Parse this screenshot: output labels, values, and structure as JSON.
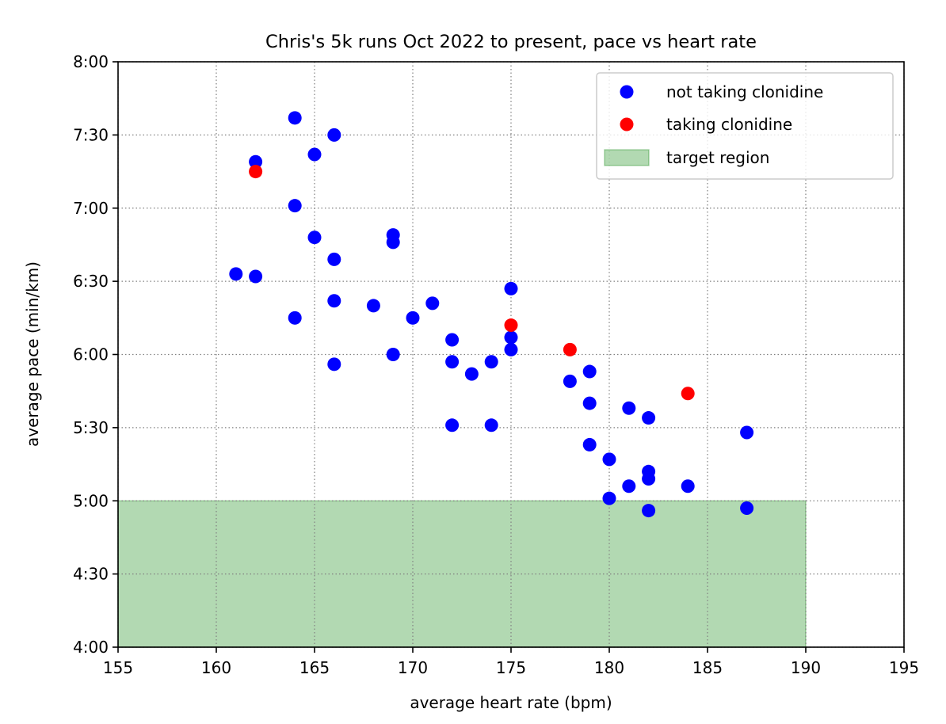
{
  "chart_data": {
    "type": "scatter",
    "title": "Chris's 5k runs Oct 2022 to present, pace vs heart rate",
    "xlabel": "average heart rate (bpm)",
    "ylabel": "average pace (min/km)",
    "xlim": [
      155,
      195
    ],
    "ylim": [
      240,
      480
    ],
    "x_ticks": [
      155,
      160,
      165,
      170,
      175,
      180,
      185,
      190,
      195
    ],
    "y_ticks": [
      240,
      270,
      300,
      330,
      360,
      390,
      420,
      450,
      480
    ],
    "y_tick_labels": [
      "4:00",
      "4:30",
      "5:00",
      "5:30",
      "6:00",
      "6:30",
      "7:00",
      "7:30",
      "8:00"
    ],
    "y_unit": "seconds per km",
    "grid": true,
    "legend_position": "top-right",
    "target_region": {
      "label": "target region",
      "x": [
        155,
        190
      ],
      "y": [
        240,
        300
      ],
      "color": "#008000"
    },
    "series": [
      {
        "name": "not taking clonidine",
        "color": "#0000ff",
        "points": [
          [
            161,
            393
          ],
          [
            162,
            392
          ],
          [
            162,
            439
          ],
          [
            164,
            457
          ],
          [
            164,
            421
          ],
          [
            164,
            375
          ],
          [
            165,
            442
          ],
          [
            165,
            408
          ],
          [
            166,
            450
          ],
          [
            166,
            399
          ],
          [
            166,
            382
          ],
          [
            166,
            356
          ],
          [
            168,
            380
          ],
          [
            169,
            409
          ],
          [
            169,
            406
          ],
          [
            169,
            360
          ],
          [
            170,
            375
          ],
          [
            171,
            381
          ],
          [
            172,
            366
          ],
          [
            172,
            357
          ],
          [
            172,
            331
          ],
          [
            173,
            352
          ],
          [
            174,
            357
          ],
          [
            174,
            331
          ],
          [
            175,
            387
          ],
          [
            175,
            367
          ],
          [
            175,
            362
          ],
          [
            178,
            349
          ],
          [
            179,
            353
          ],
          [
            179,
            340
          ],
          [
            179,
            323
          ],
          [
            180,
            317
          ],
          [
            180,
            301
          ],
          [
            181,
            338
          ],
          [
            181,
            306
          ],
          [
            182,
            334
          ],
          [
            182,
            312
          ],
          [
            182,
            309
          ],
          [
            182,
            296
          ],
          [
            184,
            306
          ],
          [
            187,
            328
          ],
          [
            187,
            297
          ]
        ]
      },
      {
        "name": "taking clonidine",
        "color": "#ff0000",
        "points": [
          [
            162,
            435
          ],
          [
            175,
            372
          ],
          [
            178,
            362
          ],
          [
            184,
            344
          ]
        ]
      }
    ]
  }
}
